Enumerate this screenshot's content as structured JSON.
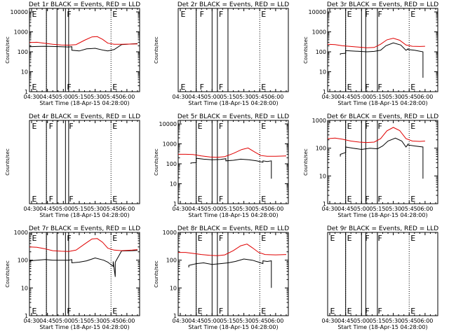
{
  "colors": {
    "events": "#000000",
    "lld": "#e00000",
    "frame": "#000000"
  },
  "chart_data": [
    {
      "type": "line",
      "title": "Det 1r BLACK = Events, RED = LLD",
      "xlabel": "Start Time (18-Apr-15 04:28:00)",
      "ylabel": "Counts/sec",
      "xlim": [
        "04:28",
        "06:12"
      ],
      "xticks": [
        "04:30",
        "04:45",
        "05:00",
        "05:15",
        "05:30",
        "05:45",
        "06:00"
      ],
      "ylog": true,
      "ylim": [
        1,
        15000
      ],
      "yticks": [
        "1",
        "10",
        "100",
        "1000",
        "10000"
      ],
      "solid_lines": [
        "04:44",
        "04:54",
        "05:02",
        "05:05"
      ],
      "dotted_lines": [
        "04:44",
        "05:45"
      ],
      "letters": [
        {
          "text": "E",
          "t": "04:29"
        },
        {
          "text": "F",
          "t": "05:02"
        },
        {
          "text": "E",
          "t": "05:45"
        }
      ],
      "series": [
        {
          "role": "events",
          "x": [
            "04:28",
            "04:35",
            "04:43",
            "04:50",
            "04:58",
            "05:05",
            "05:08",
            "05:08",
            "05:15",
            "05:22",
            "05:30",
            "05:38",
            "05:42",
            "05:48",
            "05:55",
            "06:05",
            "06:10"
          ],
          "y": [
            180,
            185,
            190,
            185,
            180,
            175,
            180,
            120,
            110,
            140,
            150,
            120,
            110,
            130,
            230,
            250,
            260
          ]
        },
        {
          "role": "lld",
          "x": [
            "04:28",
            "04:35",
            "04:42",
            "04:50",
            "04:58",
            "05:05",
            "05:12",
            "05:20",
            "05:27",
            "05:32",
            "05:37",
            "05:42",
            "05:48",
            "05:55",
            "06:05",
            "06:10"
          ],
          "y": [
            290,
            300,
            270,
            240,
            220,
            215,
            230,
            380,
            560,
            580,
            420,
            270,
            240,
            240,
            245,
            250
          ]
        }
      ]
    },
    {
      "type": "line",
      "title": "Det 2r BLACK = Events, RED = LLD",
      "xlabel": "Start Time (18-Apr-15 04:28:00)",
      "ylabel": "Counts/sec",
      "xlim": [
        "04:28",
        "06:12"
      ],
      "xticks": [
        "04:30",
        "04:45",
        "05:00",
        "05:15",
        "05:30",
        "05:45",
        "06:00"
      ],
      "ylog": true,
      "ylim": [
        1e-06,
        1e-05
      ],
      "yticks": [],
      "solid_lines": [
        "04:45",
        "05:00",
        "05:05",
        "05:15"
      ],
      "dotted_lines": [
        "04:45",
        "05:45"
      ],
      "letters": [
        {
          "text": "E",
          "t": "04:29"
        },
        {
          "text": "F",
          "t": "04:47"
        },
        {
          "text": "F",
          "t": "05:05"
        },
        {
          "text": "E",
          "t": "05:45"
        }
      ],
      "series": []
    },
    {
      "type": "line",
      "title": "Det 3r BLACK = Events, RED = LLD",
      "xlabel": "Start Time (18-Apr-15 04:28:00)",
      "ylabel": "Counts/sec",
      "xlim": [
        "04:28",
        "06:12"
      ],
      "xticks": [
        "04:30",
        "04:45",
        "05:00",
        "05:15",
        "05:30",
        "05:45",
        "06:00"
      ],
      "ylog": true,
      "ylim": [
        1,
        15000
      ],
      "yticks": [
        "1",
        "10",
        "100",
        "1000",
        "10000"
      ],
      "solid_lines": [
        "04:45",
        "05:00",
        "05:04",
        "05:15"
      ],
      "dotted_lines": [
        "04:45",
        "05:45"
      ],
      "letters": [
        {
          "text": "E",
          "t": "04:45"
        },
        {
          "text": "F",
          "t": "05:02"
        },
        {
          "text": "F",
          "t": "05:14"
        },
        {
          "text": "E",
          "t": "05:45"
        }
      ],
      "series": [
        {
          "role": "events",
          "x": [
            "04:40",
            "04:40",
            "04:45",
            "04:45",
            "04:50",
            "04:58",
            "05:05",
            "05:12",
            "05:18",
            "05:23",
            "05:30",
            "05:37",
            "05:42",
            "05:44",
            "05:44",
            "05:50",
            "05:58",
            "05:58"
          ],
          "y": [
            70,
            80,
            85,
            115,
            110,
            105,
            100,
            105,
            120,
            200,
            280,
            220,
            120,
            140,
            130,
            120,
            100,
            5
          ]
        },
        {
          "role": "lld",
          "x": [
            "04:28",
            "04:35",
            "04:42",
            "04:50",
            "04:58",
            "05:05",
            "05:12",
            "05:18",
            "05:24",
            "05:30",
            "05:36",
            "05:42",
            "05:48",
            "05:55",
            "06:00"
          ],
          "y": [
            240,
            230,
            200,
            185,
            170,
            160,
            165,
            240,
            400,
            480,
            380,
            220,
            190,
            185,
            190
          ]
        }
      ]
    },
    {
      "type": "line",
      "title": "Det 4r BLACK = Events, RED = LLD",
      "xlabel": "Start Time (18-Apr-15 04:28:00)",
      "ylabel": "Counts/sec",
      "xlim": [
        "04:28",
        "06:12"
      ],
      "xticks": [
        "04:30",
        "04:45",
        "05:00",
        "05:15",
        "05:30",
        "05:45",
        "06:00"
      ],
      "ylog": true,
      "ylim": [
        1e-06,
        1e-05
      ],
      "yticks": [],
      "solid_lines": [
        "04:44",
        "04:54",
        "05:02",
        "05:05"
      ],
      "dotted_lines": [
        "04:44",
        "05:45"
      ],
      "letters": [
        {
          "text": "E",
          "t": "04:29"
        },
        {
          "text": "F",
          "t": "04:45"
        },
        {
          "text": "F",
          "t": "05:04"
        },
        {
          "text": "E",
          "t": "05:45"
        }
      ],
      "series": []
    },
    {
      "type": "line",
      "title": "Det 5r BLACK = Events, RED = LLD",
      "xlabel": "Start Time (18-Apr-15 04:28:00)",
      "ylabel": "Counts/sec",
      "xlim": [
        "04:28",
        "06:12"
      ],
      "xticks": [
        "04:30",
        "04:45",
        "05:00",
        "05:15",
        "05:30",
        "05:45",
        "06:00"
      ],
      "ylog": true,
      "ylim": [
        1,
        15000
      ],
      "yticks": [
        "1",
        "10",
        "100",
        "1000",
        "10000"
      ],
      "solid_lines": [
        "04:45",
        "05:00",
        "05:05",
        "05:15"
      ],
      "dotted_lines": [
        "04:45",
        "05:45"
      ],
      "letters": [
        {
          "text": "E",
          "t": "04:45"
        },
        {
          "text": "F",
          "t": "05:05"
        },
        {
          "text": "E",
          "t": "05:45"
        }
      ],
      "series": [
        {
          "role": "events",
          "x": [
            "04:40",
            "04:40",
            "04:45",
            "04:45",
            "04:52",
            "05:00",
            "05:08",
            "05:13",
            "05:13",
            "05:20",
            "05:27",
            "05:35",
            "05:42",
            "05:48",
            "05:48",
            "05:52",
            "05:56",
            "05:56"
          ],
          "y": [
            100,
            110,
            115,
            190,
            170,
            160,
            165,
            180,
            140,
            150,
            170,
            160,
            140,
            120,
            140,
            130,
            140,
            18
          ]
        },
        {
          "role": "lld",
          "x": [
            "04:28",
            "04:35",
            "04:42",
            "04:50",
            "04:58",
            "05:05",
            "05:12",
            "05:20",
            "05:28",
            "05:34",
            "05:40",
            "05:46",
            "05:52",
            "06:00",
            "06:10"
          ],
          "y": [
            300,
            300,
            290,
            250,
            220,
            210,
            230,
            330,
            520,
            620,
            400,
            260,
            240,
            240,
            250
          ]
        }
      ]
    },
    {
      "type": "line",
      "title": "Det 6r BLACK = Events, RED = LLD",
      "xlabel": "Start Time (18-Apr-15 04:28:00)",
      "ylabel": "Counts/sec",
      "xlim": [
        "04:28",
        "06:12"
      ],
      "xticks": [
        "04:30",
        "04:45",
        "05:00",
        "05:15",
        "05:30",
        "05:45",
        "06:00"
      ],
      "ylog": true,
      "ylim": [
        1,
        1000
      ],
      "yticks": [
        "1",
        "10",
        "100",
        "1000"
      ],
      "solid_lines": [
        "04:45",
        "05:00",
        "05:04",
        "05:15"
      ],
      "dotted_lines": [
        "04:45",
        "05:45"
      ],
      "letters": [
        {
          "text": "E",
          "t": "04:45"
        },
        {
          "text": "F",
          "t": "05:02"
        },
        {
          "text": "F",
          "t": "05:14"
        },
        {
          "text": "E",
          "t": "05:45"
        }
      ],
      "series": [
        {
          "role": "events",
          "x": [
            "04:40",
            "04:40",
            "04:45",
            "04:45",
            "04:52",
            "05:00",
            "05:08",
            "05:15",
            "05:20",
            "05:25",
            "05:32",
            "05:38",
            "05:42",
            "05:44",
            "05:44",
            "05:50",
            "05:58",
            "05:58"
          ],
          "y": [
            50,
            60,
            70,
            110,
            100,
            90,
            100,
            95,
            120,
            180,
            230,
            180,
            110,
            140,
            130,
            120,
            110,
            8
          ]
        },
        {
          "role": "lld",
          "x": [
            "04:28",
            "04:35",
            "04:42",
            "04:50",
            "04:58",
            "05:05",
            "05:12",
            "05:18",
            "05:24",
            "05:30",
            "05:36",
            "05:42",
            "05:48",
            "05:55",
            "06:00"
          ],
          "y": [
            220,
            230,
            210,
            180,
            165,
            160,
            165,
            220,
            420,
            560,
            430,
            220,
            180,
            175,
            180
          ]
        }
      ]
    },
    {
      "type": "line",
      "title": "Det 7r BLACK = Events, RED = LLD",
      "xlabel": "Start Time (18-Apr-15 04:28:00)",
      "ylabel": "Counts/sec",
      "xlim": [
        "04:28",
        "06:12"
      ],
      "xticks": [
        "04:30",
        "04:45",
        "05:00",
        "05:15",
        "05:30",
        "05:45",
        "06:00"
      ],
      "ylog": true,
      "ylim": [
        1,
        1000
      ],
      "yticks": [
        "1",
        "10",
        "100",
        "1000"
      ],
      "solid_lines": [
        "04:44",
        "04:54",
        "05:02",
        "05:05"
      ],
      "dotted_lines": [
        "04:44",
        "05:45"
      ],
      "letters": [
        {
          "text": "E",
          "t": "04:29"
        },
        {
          "text": "F",
          "t": "05:02"
        },
        {
          "text": "E",
          "t": "05:45"
        }
      ],
      "series": [
        {
          "role": "events",
          "x": [
            "04:28",
            "04:28",
            "04:35",
            "04:43",
            "04:50",
            "04:58",
            "05:05",
            "05:08",
            "05:08",
            "05:15",
            "05:22",
            "05:30",
            "05:38",
            "05:42",
            "05:47",
            "05:47",
            "05:49",
            "05:49",
            "05:55",
            "06:05",
            "06:10"
          ],
          "y": [
            80,
            95,
            100,
            105,
            100,
            100,
            100,
            105,
            80,
            85,
            95,
            120,
            100,
            85,
            60,
            90,
            25,
            85,
            215,
            220,
            225
          ]
        },
        {
          "role": "lld",
          "x": [
            "04:28",
            "04:35",
            "04:42",
            "04:50",
            "04:58",
            "05:05",
            "05:12",
            "05:20",
            "05:27",
            "05:32",
            "05:37",
            "05:42",
            "05:48",
            "05:55",
            "06:05",
            "06:10"
          ],
          "y": [
            300,
            290,
            260,
            220,
            210,
            205,
            230,
            380,
            580,
            600,
            440,
            270,
            230,
            220,
            230,
            240
          ]
        }
      ]
    },
    {
      "type": "line",
      "title": "Det 8r BLACK = Events, RED = LLD",
      "xlabel": "Start Time (18-Apr-15 04:28:00)",
      "ylabel": "Counts/sec",
      "xlim": [
        "04:28",
        "06:12"
      ],
      "xticks": [
        "04:30",
        "04:45",
        "05:00",
        "05:15",
        "05:30",
        "05:45",
        "06:00"
      ],
      "ylog": true,
      "ylim": [
        1,
        1000
      ],
      "yticks": [
        "1",
        "10",
        "100",
        "1000"
      ],
      "solid_lines": [
        "04:45",
        "05:00",
        "05:05",
        "05:15"
      ],
      "dotted_lines": [
        "04:45",
        "05:45"
      ],
      "letters": [
        {
          "text": "E",
          "t": "04:45"
        },
        {
          "text": "F",
          "t": "05:05"
        },
        {
          "text": "E",
          "t": "05:45"
        }
      ],
      "series": [
        {
          "role": "events",
          "x": [
            "04:38",
            "04:38",
            "04:42",
            "04:45",
            "04:52",
            "05:00",
            "05:08",
            "05:15",
            "05:22",
            "05:30",
            "05:38",
            "05:44",
            "05:48",
            "05:48",
            "05:52",
            "05:56",
            "05:56"
          ],
          "y": [
            55,
            65,
            70,
            75,
            80,
            70,
            75,
            80,
            90,
            110,
            100,
            85,
            75,
            95,
            90,
            95,
            10
          ]
        },
        {
          "role": "lld",
          "x": [
            "04:28",
            "04:35",
            "04:42",
            "04:50",
            "04:58",
            "05:05",
            "05:12",
            "05:20",
            "05:27",
            "05:33",
            "05:38",
            "05:44",
            "05:50",
            "06:00",
            "06:10"
          ],
          "y": [
            190,
            190,
            175,
            160,
            150,
            145,
            155,
            220,
            330,
            380,
            280,
            190,
            160,
            155,
            160
          ]
        }
      ]
    },
    {
      "type": "line",
      "title": "Det 9r BLACK = Events, RED = LLD",
      "xlabel": "Start Time (18-Apr-15 04:28:00)",
      "ylabel": "",
      "xlim": [
        "04:28",
        "06:12"
      ],
      "xticks": [
        "04:30",
        "04:45",
        "05:00",
        "05:15",
        "05:30",
        "05:45",
        "06:00"
      ],
      "ylog": false,
      "ylim": [
        0,
        1
      ],
      "yticks": [],
      "solid_lines": [
        "04:45",
        "05:00",
        "05:04",
        "05:15"
      ],
      "dotted_lines": [
        "04:45",
        "05:45"
      ],
      "letters": [
        {
          "text": "E",
          "t": "04:29"
        },
        {
          "text": "E",
          "t": "04:45"
        },
        {
          "text": "F",
          "t": "05:02"
        },
        {
          "text": "F",
          "t": "05:14"
        },
        {
          "text": "E",
          "t": "05:45"
        }
      ],
      "series": []
    }
  ]
}
